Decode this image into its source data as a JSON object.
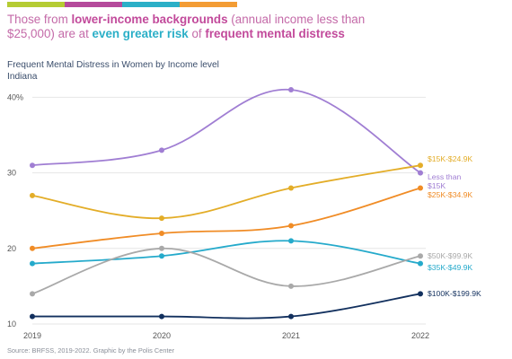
{
  "headline": {
    "p1": "Those from ",
    "p2": "lower-income backgrounds",
    "p3": " (annual income less than $25,000) are at ",
    "p4": "even greater risk",
    "p5": " of ",
    "p6": "frequent mental distress"
  },
  "colors": {
    "bar": [
      "#b5cc33",
      "#b54a9b",
      "#2bafc7",
      "#f39c34"
    ]
  },
  "chart_data": {
    "type": "line",
    "title": "Frequent Mental Distress in Women by Income level",
    "subtitle": "Indiana",
    "x": [
      "2019",
      "2020",
      "2021",
      "2022"
    ],
    "yticks": [
      {
        "value": 10,
        "label": "10"
      },
      {
        "value": 20,
        "label": "20"
      },
      {
        "value": 30,
        "label": "30"
      },
      {
        "value": 40,
        "label": "40%"
      }
    ],
    "ylim": [
      10,
      41
    ],
    "grid": true,
    "source": "Source: BRFSS, 2019-2022. Graphic by the Polis Center",
    "series": [
      {
        "name": "Less than $15K",
        "color": "#a07ed3",
        "values": [
          31,
          33,
          41,
          30
        ]
      },
      {
        "name": "$15K-$24.9K",
        "color": "#e3ad28",
        "values": [
          27,
          24,
          28,
          31
        ]
      },
      {
        "name": "$25K-$34.9K",
        "color": "#f08c26",
        "values": [
          20,
          22,
          23,
          28
        ]
      },
      {
        "name": "$35K-$49.9K",
        "color": "#25aacb",
        "values": [
          18,
          19,
          21,
          18
        ]
      },
      {
        "name": "$50K-$99.9K",
        "color": "#a9a9a9",
        "values": [
          14,
          20,
          15,
          19
        ]
      },
      {
        "name": "$100K-$199.9K",
        "color": "#12305e",
        "values": [
          11,
          11,
          11,
          14
        ]
      }
    ]
  }
}
